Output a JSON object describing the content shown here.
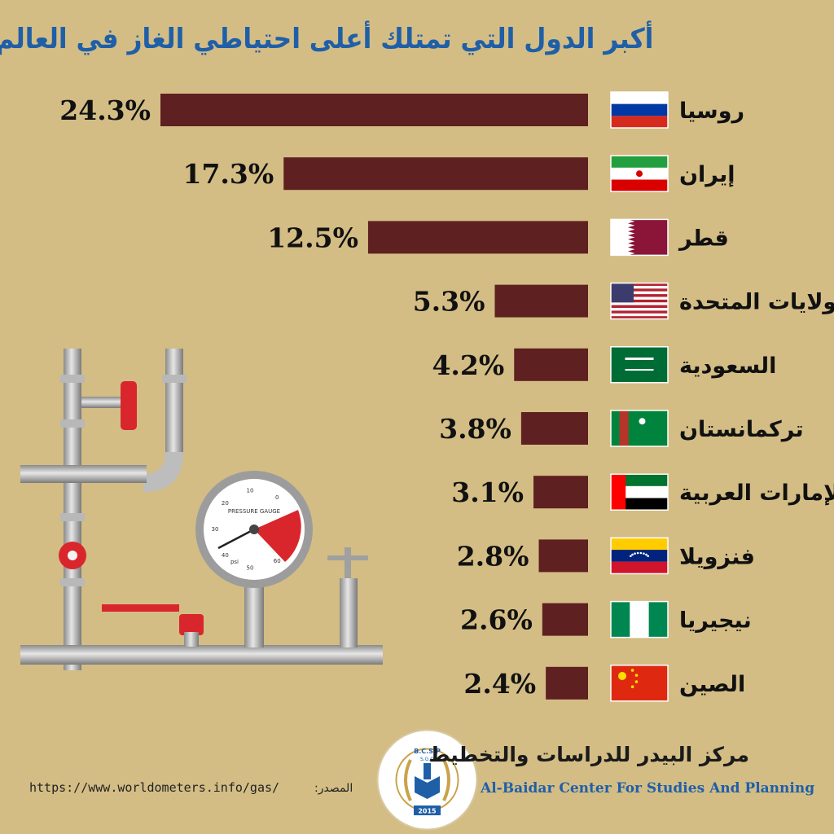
{
  "chart_data": {
    "type": "bar",
    "orientation": "horizontal",
    "title": "أكبر الدول التي تمتلك أعلى احتياطي الغاز في العالم",
    "categories": [
      "روسيا",
      "إيران",
      "قطر",
      "الولايات المتحدة",
      "السعودية",
      "تركمانستان",
      "الإمارات العربية",
      "فنزويلا",
      "نيجيريا",
      "الصين"
    ],
    "values": [
      24.3,
      17.3,
      12.5,
      5.3,
      4.2,
      3.8,
      3.1,
      2.8,
      2.6,
      2.4
    ],
    "value_labels": [
      "24.3%",
      "17.3%",
      "12.5%",
      "5.3%",
      "4.2%",
      "3.8%",
      "3.1%",
      "2.8%",
      "2.6%",
      "2.4%"
    ],
    "flags": [
      "russia-flag",
      "iran-flag",
      "qatar-flag",
      "usa-flag",
      "saudi-flag",
      "turkmenistan-flag",
      "uae-flag",
      "venezuela-flag",
      "nigeria-flag",
      "china-flag"
    ],
    "bar_color": "#5e2020",
    "background_color": "#d3bd85",
    "title_color": "#1f5fa8"
  },
  "footer": {
    "center_name_ar": "مركز البيدر للدراسات والتخطيط",
    "center_name_en": "Al-Baidar Center For Studies And Planning",
    "logo_text_top": "B.C.S.P",
    "logo_text_sub": "S.G.O",
    "logo_year": "2015",
    "source_label": "المصدر:",
    "source_url": "https://www.worldometers.info/gas/"
  },
  "illustration": {
    "gauge_label": "PRESSURE GAUGE",
    "gauge_unit": "psi",
    "gauge_ticks": [
      "0",
      "10",
      "20",
      "30",
      "40",
      "50",
      "60"
    ]
  }
}
